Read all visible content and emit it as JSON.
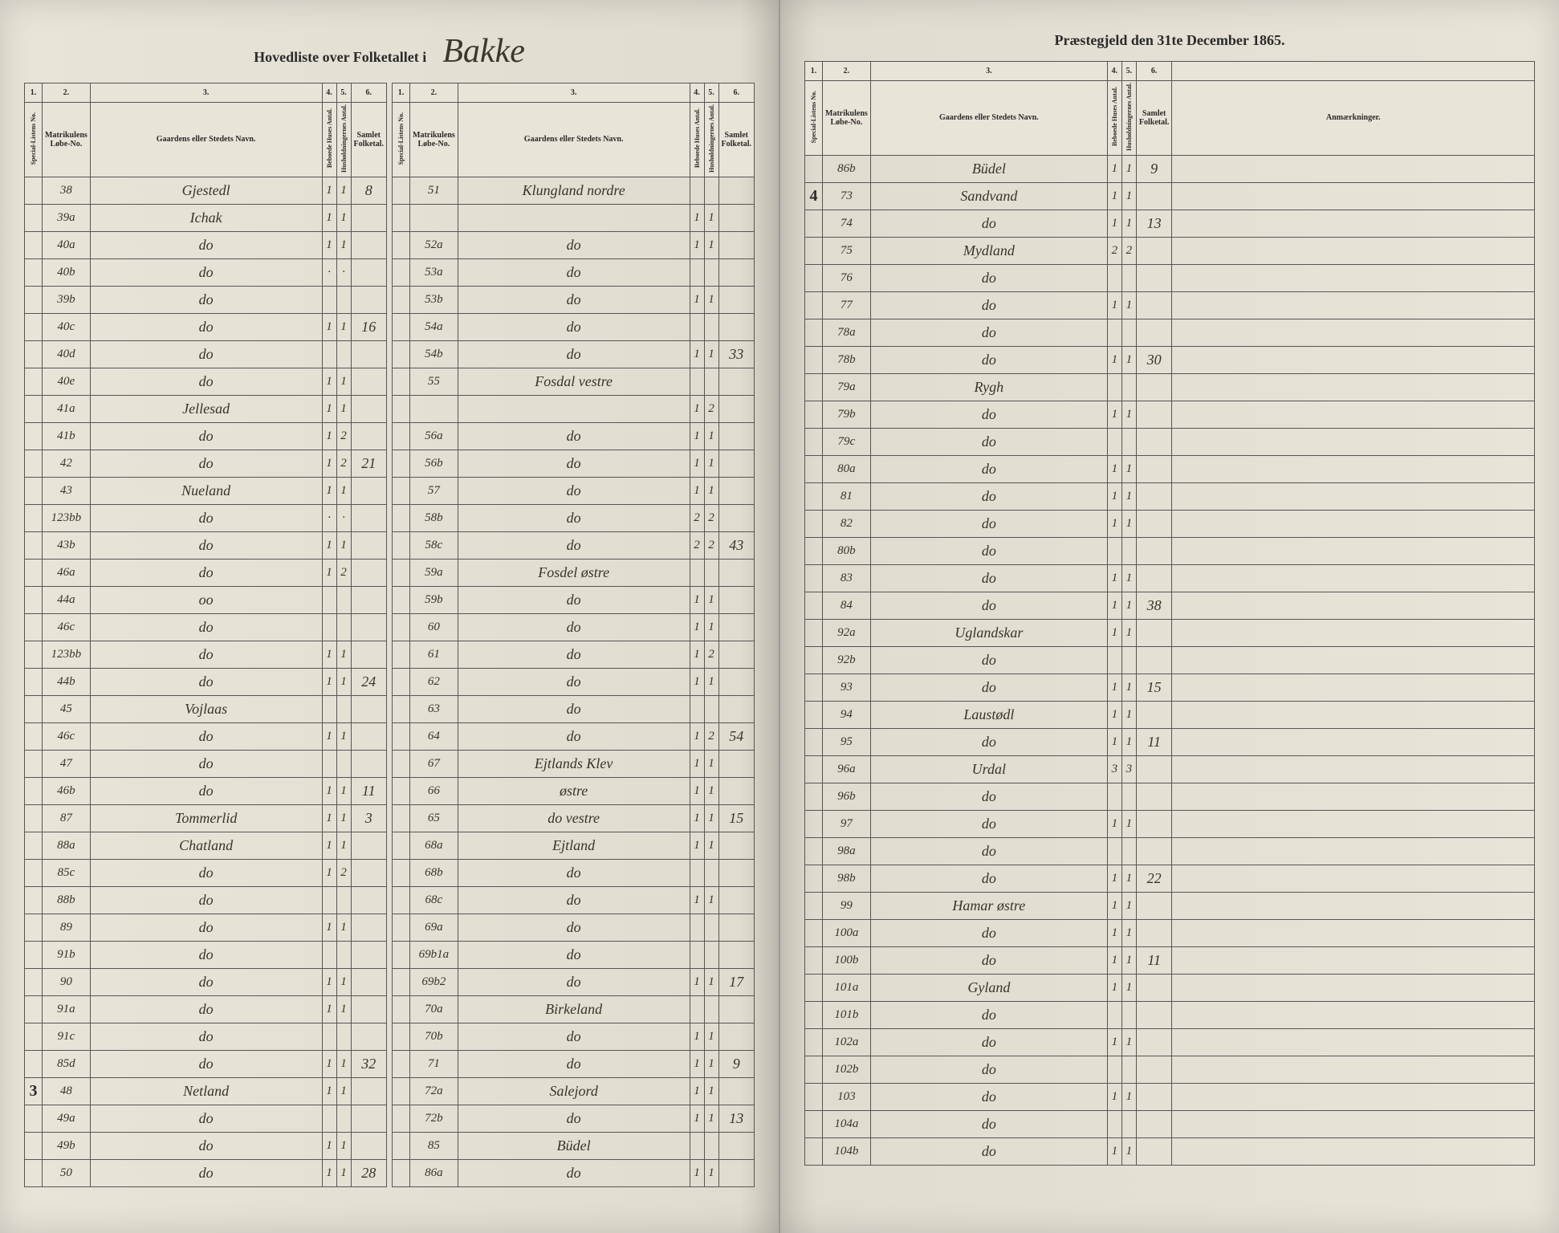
{
  "header": {
    "left_printed": "Hovedliste over Folketallet i",
    "parish_script": "Bakke",
    "right_printed": "Præstegjeld den 31te December 1865."
  },
  "col_nums": [
    "1.",
    "2.",
    "3.",
    "4.",
    "5.",
    "6."
  ],
  "col_labels": {
    "c1": "Special-Listens No.",
    "c2": "Matrikulens Løbe-No.",
    "c3": "Gaardens eller Stedets Navn.",
    "c4": "Beboede Huses Antal.",
    "c5": "Husholdningernes Antal.",
    "c6": "Samlet Folketal.",
    "remarks": "Anmærkninger."
  },
  "left_a": [
    {
      "c1": "",
      "c2": "38",
      "c3": "Gjestedl",
      "c4": "1",
      "c5": "1",
      "c6": "8"
    },
    {
      "c1": "",
      "c2": "39a",
      "c3": "Ichak",
      "c4": "1",
      "c5": "1",
      "c6": ""
    },
    {
      "c1": "",
      "c2": "40a",
      "c3": "do",
      "c4": "1",
      "c5": "1",
      "c6": ""
    },
    {
      "c1": "",
      "c2": "40b",
      "c3": "do",
      "c4": "·",
      "c5": "·",
      "c6": ""
    },
    {
      "c1": "",
      "c2": "39b",
      "c3": "do",
      "c4": "",
      "c5": "",
      "c6": ""
    },
    {
      "c1": "",
      "c2": "40c",
      "c3": "do",
      "c4": "1",
      "c5": "1",
      "c6": "16"
    },
    {
      "c1": "",
      "c2": "40d",
      "c3": "do",
      "c4": "",
      "c5": "",
      "c6": ""
    },
    {
      "c1": "",
      "c2": "40e",
      "c3": "do",
      "c4": "1",
      "c5": "1",
      "c6": ""
    },
    {
      "c1": "",
      "c2": "41a",
      "c3": "Jellesad",
      "c4": "1",
      "c5": "1",
      "c6": ""
    },
    {
      "c1": "",
      "c2": "41b",
      "c3": "do",
      "c4": "1",
      "c5": "2",
      "c6": ""
    },
    {
      "c1": "",
      "c2": "42",
      "c3": "do",
      "c4": "1",
      "c5": "2",
      "c6": "21"
    },
    {
      "c1": "",
      "c2": "43",
      "c3": "Nueland",
      "c4": "1",
      "c5": "1",
      "c6": ""
    },
    {
      "c1": "",
      "c2": "123bb",
      "c3": "do",
      "c4": "·",
      "c5": "·",
      "c6": ""
    },
    {
      "c1": "",
      "c2": "43b",
      "c3": "do",
      "c4": "1",
      "c5": "1",
      "c6": ""
    },
    {
      "c1": "",
      "c2": "46a",
      "c3": "do",
      "c4": "1",
      "c5": "2",
      "c6": ""
    },
    {
      "c1": "",
      "c2": "44a",
      "c3": "oo",
      "c4": "",
      "c5": "",
      "c6": ""
    },
    {
      "c1": "",
      "c2": "46c",
      "c3": "do",
      "c4": "",
      "c5": "",
      "c6": ""
    },
    {
      "c1": "",
      "c2": "123bb",
      "c3": "do",
      "c4": "1",
      "c5": "1",
      "c6": ""
    },
    {
      "c1": "",
      "c2": "44b",
      "c3": "do",
      "c4": "1",
      "c5": "1",
      "c6": "24"
    },
    {
      "c1": "",
      "c2": "45",
      "c3": "Vojlaas",
      "c4": "",
      "c5": "",
      "c6": ""
    },
    {
      "c1": "",
      "c2": "46c",
      "c3": "do",
      "c4": "1",
      "c5": "1",
      "c6": ""
    },
    {
      "c1": "",
      "c2": "47",
      "c3": "do",
      "c4": "",
      "c5": "",
      "c6": ""
    },
    {
      "c1": "",
      "c2": "46b",
      "c3": "do",
      "c4": "1",
      "c5": "1",
      "c6": "11"
    },
    {
      "c1": "",
      "c2": "87",
      "c3": "Tommerlid",
      "c4": "1",
      "c5": "1",
      "c6": "3"
    },
    {
      "c1": "",
      "c2": "88a",
      "c3": "Chatland",
      "c4": "1",
      "c5": "1",
      "c6": ""
    },
    {
      "c1": "",
      "c2": "85c",
      "c3": "do",
      "c4": "1",
      "c5": "2",
      "c6": ""
    },
    {
      "c1": "",
      "c2": "88b",
      "c3": "do",
      "c4": "",
      "c5": "",
      "c6": ""
    },
    {
      "c1": "",
      "c2": "89",
      "c3": "do",
      "c4": "1",
      "c5": "1",
      "c6": ""
    },
    {
      "c1": "",
      "c2": "91b",
      "c3": "do",
      "c4": "",
      "c5": "",
      "c6": ""
    },
    {
      "c1": "",
      "c2": "90",
      "c3": "do",
      "c4": "1",
      "c5": "1",
      "c6": ""
    },
    {
      "c1": "",
      "c2": "91a",
      "c3": "do",
      "c4": "1",
      "c5": "1",
      "c6": ""
    },
    {
      "c1": "",
      "c2": "91c",
      "c3": "do",
      "c4": "",
      "c5": "",
      "c6": ""
    },
    {
      "c1": "",
      "c2": "85d",
      "c3": "do",
      "c4": "1",
      "c5": "1",
      "c6": "32"
    },
    {
      "c1": "3",
      "c2": "48",
      "c3": "Netland",
      "c4": "1",
      "c5": "1",
      "c6": ""
    },
    {
      "c1": "",
      "c2": "49a",
      "c3": "do",
      "c4": "",
      "c5": "",
      "c6": ""
    },
    {
      "c1": "",
      "c2": "49b",
      "c3": "do",
      "c4": "1",
      "c5": "1",
      "c6": ""
    },
    {
      "c1": "",
      "c2": "50",
      "c3": "do",
      "c4": "1",
      "c5": "1",
      "c6": "28"
    }
  ],
  "left_b": [
    {
      "c1": "",
      "c2": "51",
      "c3": "Klungland nordre",
      "c4": "",
      "c5": "",
      "c6": ""
    },
    {
      "c1": "",
      "c2": "",
      "c3": "",
      "c4": "1",
      "c5": "1",
      "c6": ""
    },
    {
      "c1": "",
      "c2": "52a",
      "c3": "do",
      "c4": "1",
      "c5": "1",
      "c6": ""
    },
    {
      "c1": "",
      "c2": "53a",
      "c3": "do",
      "c4": "",
      "c5": "",
      "c6": ""
    },
    {
      "c1": "",
      "c2": "53b",
      "c3": "do",
      "c4": "1",
      "c5": "1",
      "c6": ""
    },
    {
      "c1": "",
      "c2": "54a",
      "c3": "do",
      "c4": "",
      "c5": "",
      "c6": ""
    },
    {
      "c1": "",
      "c2": "54b",
      "c3": "do",
      "c4": "1",
      "c5": "1",
      "c6": "33"
    },
    {
      "c1": "",
      "c2": "55",
      "c3": "Fosdal vestre",
      "c4": "",
      "c5": "",
      "c6": ""
    },
    {
      "c1": "",
      "c2": "",
      "c3": "",
      "c4": "1",
      "c5": "2",
      "c6": ""
    },
    {
      "c1": "",
      "c2": "56a",
      "c3": "do",
      "c4": "1",
      "c5": "1",
      "c6": ""
    },
    {
      "c1": "",
      "c2": "56b",
      "c3": "do",
      "c4": "1",
      "c5": "1",
      "c6": ""
    },
    {
      "c1": "",
      "c2": "57",
      "c3": "do",
      "c4": "1",
      "c5": "1",
      "c6": ""
    },
    {
      "c1": "",
      "c2": "58b",
      "c3": "do",
      "c4": "2",
      "c5": "2",
      "c6": ""
    },
    {
      "c1": "",
      "c2": "58c",
      "c3": "do",
      "c4": "2",
      "c5": "2",
      "c6": "43"
    },
    {
      "c1": "",
      "c2": "59a",
      "c3": "Fosdel østre",
      "c4": "",
      "c5": "",
      "c6": ""
    },
    {
      "c1": "",
      "c2": "59b",
      "c3": "do",
      "c4": "1",
      "c5": "1",
      "c6": ""
    },
    {
      "c1": "",
      "c2": "60",
      "c3": "do",
      "c4": "1",
      "c5": "1",
      "c6": ""
    },
    {
      "c1": "",
      "c2": "61",
      "c3": "do",
      "c4": "1",
      "c5": "2",
      "c6": ""
    },
    {
      "c1": "",
      "c2": "62",
      "c3": "do",
      "c4": "1",
      "c5": "1",
      "c6": ""
    },
    {
      "c1": "",
      "c2": "63",
      "c3": "do",
      "c4": "",
      "c5": "",
      "c6": ""
    },
    {
      "c1": "",
      "c2": "64",
      "c3": "do",
      "c4": "1",
      "c5": "2",
      "c6": "54"
    },
    {
      "c1": "",
      "c2": "67",
      "c3": "Ejtlands Klev",
      "c4": "1",
      "c5": "1",
      "c6": ""
    },
    {
      "c1": "",
      "c2": "66",
      "c3": "østre",
      "c4": "1",
      "c5": "1",
      "c6": ""
    },
    {
      "c1": "",
      "c2": "65",
      "c3": "do vestre",
      "c4": "1",
      "c5": "1",
      "c6": "15"
    },
    {
      "c1": "",
      "c2": "68a",
      "c3": "Ejtland",
      "c4": "1",
      "c5": "1",
      "c6": ""
    },
    {
      "c1": "",
      "c2": "68b",
      "c3": "do",
      "c4": "",
      "c5": "",
      "c6": ""
    },
    {
      "c1": "",
      "c2": "68c",
      "c3": "do",
      "c4": "1",
      "c5": "1",
      "c6": ""
    },
    {
      "c1": "",
      "c2": "69a",
      "c3": "do",
      "c4": "",
      "c5": "",
      "c6": ""
    },
    {
      "c1": "",
      "c2": "69b1a",
      "c3": "do",
      "c4": "",
      "c5": "",
      "c6": ""
    },
    {
      "c1": "",
      "c2": "69b2",
      "c3": "do",
      "c4": "1",
      "c5": "1",
      "c6": "17"
    },
    {
      "c1": "",
      "c2": "70a",
      "c3": "Birkeland",
      "c4": "",
      "c5": "",
      "c6": ""
    },
    {
      "c1": "",
      "c2": "70b",
      "c3": "do",
      "c4": "1",
      "c5": "1",
      "c6": ""
    },
    {
      "c1": "",
      "c2": "71",
      "c3": "do",
      "c4": "1",
      "c5": "1",
      "c6": "9"
    },
    {
      "c1": "",
      "c2": "72a",
      "c3": "Salejord",
      "c4": "1",
      "c5": "1",
      "c6": ""
    },
    {
      "c1": "",
      "c2": "72b",
      "c3": "do",
      "c4": "1",
      "c5": "1",
      "c6": "13"
    },
    {
      "c1": "",
      "c2": "85",
      "c3": "Büdel",
      "c4": "",
      "c5": "",
      "c6": ""
    },
    {
      "c1": "",
      "c2": "86a",
      "c3": "do",
      "c4": "1",
      "c5": "1",
      "c6": ""
    }
  ],
  "right": [
    {
      "c1": "",
      "c2": "86b",
      "c3": "Büdel",
      "c4": "1",
      "c5": "1",
      "c6": "9",
      "rem": ""
    },
    {
      "c1": "4",
      "c2": "73",
      "c3": "Sandvand",
      "c4": "1",
      "c5": "1",
      "c6": "",
      "rem": ""
    },
    {
      "c1": "",
      "c2": "74",
      "c3": "do",
      "c4": "1",
      "c5": "1",
      "c6": "13",
      "rem": ""
    },
    {
      "c1": "",
      "c2": "75",
      "c3": "Mydland",
      "c4": "2",
      "c5": "2",
      "c6": "",
      "rem": ""
    },
    {
      "c1": "",
      "c2": "76",
      "c3": "do",
      "c4": "",
      "c5": "",
      "c6": "",
      "rem": ""
    },
    {
      "c1": "",
      "c2": "77",
      "c3": "do",
      "c4": "1",
      "c5": "1",
      "c6": "",
      "rem": ""
    },
    {
      "c1": "",
      "c2": "78a",
      "c3": "do",
      "c4": "",
      "c5": "",
      "c6": "",
      "rem": ""
    },
    {
      "c1": "",
      "c2": "78b",
      "c3": "do",
      "c4": "1",
      "c5": "1",
      "c6": "30",
      "rem": ""
    },
    {
      "c1": "",
      "c2": "79a",
      "c3": "Rygh",
      "c4": "",
      "c5": "",
      "c6": "",
      "rem": ""
    },
    {
      "c1": "",
      "c2": "79b",
      "c3": "do",
      "c4": "1",
      "c5": "1",
      "c6": "",
      "rem": ""
    },
    {
      "c1": "",
      "c2": "79c",
      "c3": "do",
      "c4": "",
      "c5": "",
      "c6": "",
      "rem": ""
    },
    {
      "c1": "",
      "c2": "80a",
      "c3": "do",
      "c4": "1",
      "c5": "1",
      "c6": "",
      "rem": ""
    },
    {
      "c1": "",
      "c2": "81",
      "c3": "do",
      "c4": "1",
      "c5": "1",
      "c6": "",
      "rem": ""
    },
    {
      "c1": "",
      "c2": "82",
      "c3": "do",
      "c4": "1",
      "c5": "1",
      "c6": "",
      "rem": ""
    },
    {
      "c1": "",
      "c2": "80b",
      "c3": "do",
      "c4": "",
      "c5": "",
      "c6": "",
      "rem": ""
    },
    {
      "c1": "",
      "c2": "83",
      "c3": "do",
      "c4": "1",
      "c5": "1",
      "c6": "",
      "rem": ""
    },
    {
      "c1": "",
      "c2": "84",
      "c3": "do",
      "c4": "1",
      "c5": "1",
      "c6": "38",
      "rem": ""
    },
    {
      "c1": "",
      "c2": "92a",
      "c3": "Uglandskar",
      "c4": "1",
      "c5": "1",
      "c6": "",
      "rem": ""
    },
    {
      "c1": "",
      "c2": "92b",
      "c3": "do",
      "c4": "",
      "c5": "",
      "c6": "",
      "rem": ""
    },
    {
      "c1": "",
      "c2": "93",
      "c3": "do",
      "c4": "1",
      "c5": "1",
      "c6": "15",
      "rem": ""
    },
    {
      "c1": "",
      "c2": "94",
      "c3": "Laustødl",
      "c4": "1",
      "c5": "1",
      "c6": "",
      "rem": ""
    },
    {
      "c1": "",
      "c2": "95",
      "c3": "do",
      "c4": "1",
      "c5": "1",
      "c6": "11",
      "rem": ""
    },
    {
      "c1": "",
      "c2": "96a",
      "c3": "Urdal",
      "c4": "3",
      "c5": "3",
      "c6": "",
      "rem": ""
    },
    {
      "c1": "",
      "c2": "96b",
      "c3": "do",
      "c4": "",
      "c5": "",
      "c6": "",
      "rem": ""
    },
    {
      "c1": "",
      "c2": "97",
      "c3": "do",
      "c4": "1",
      "c5": "1",
      "c6": "",
      "rem": ""
    },
    {
      "c1": "",
      "c2": "98a",
      "c3": "do",
      "c4": "",
      "c5": "",
      "c6": "",
      "rem": ""
    },
    {
      "c1": "",
      "c2": "98b",
      "c3": "do",
      "c4": "1",
      "c5": "1",
      "c6": "22",
      "rem": ""
    },
    {
      "c1": "",
      "c2": "99",
      "c3": "Hamar østre",
      "c4": "1",
      "c5": "1",
      "c6": "",
      "rem": ""
    },
    {
      "c1": "",
      "c2": "100a",
      "c3": "do",
      "c4": "1",
      "c5": "1",
      "c6": "",
      "rem": ""
    },
    {
      "c1": "",
      "c2": "100b",
      "c3": "do",
      "c4": "1",
      "c5": "1",
      "c6": "11",
      "rem": ""
    },
    {
      "c1": "",
      "c2": "101a",
      "c3": "Gyland",
      "c4": "1",
      "c5": "1",
      "c6": "",
      "rem": ""
    },
    {
      "c1": "",
      "c2": "101b",
      "c3": "do",
      "c4": "",
      "c5": "",
      "c6": "",
      "rem": ""
    },
    {
      "c1": "",
      "c2": "102a",
      "c3": "do",
      "c4": "1",
      "c5": "1",
      "c6": "",
      "rem": ""
    },
    {
      "c1": "",
      "c2": "102b",
      "c3": "do",
      "c4": "",
      "c5": "",
      "c6": "",
      "rem": ""
    },
    {
      "c1": "",
      "c2": "103",
      "c3": "do",
      "c4": "1",
      "c5": "1",
      "c6": "",
      "rem": ""
    },
    {
      "c1": "",
      "c2": "104a",
      "c3": "do",
      "c4": "",
      "c5": "",
      "c6": "",
      "rem": ""
    },
    {
      "c1": "",
      "c2": "104b",
      "c3": "do",
      "c4": "1",
      "c5": "1",
      "c6": "",
      "rem": ""
    }
  ]
}
